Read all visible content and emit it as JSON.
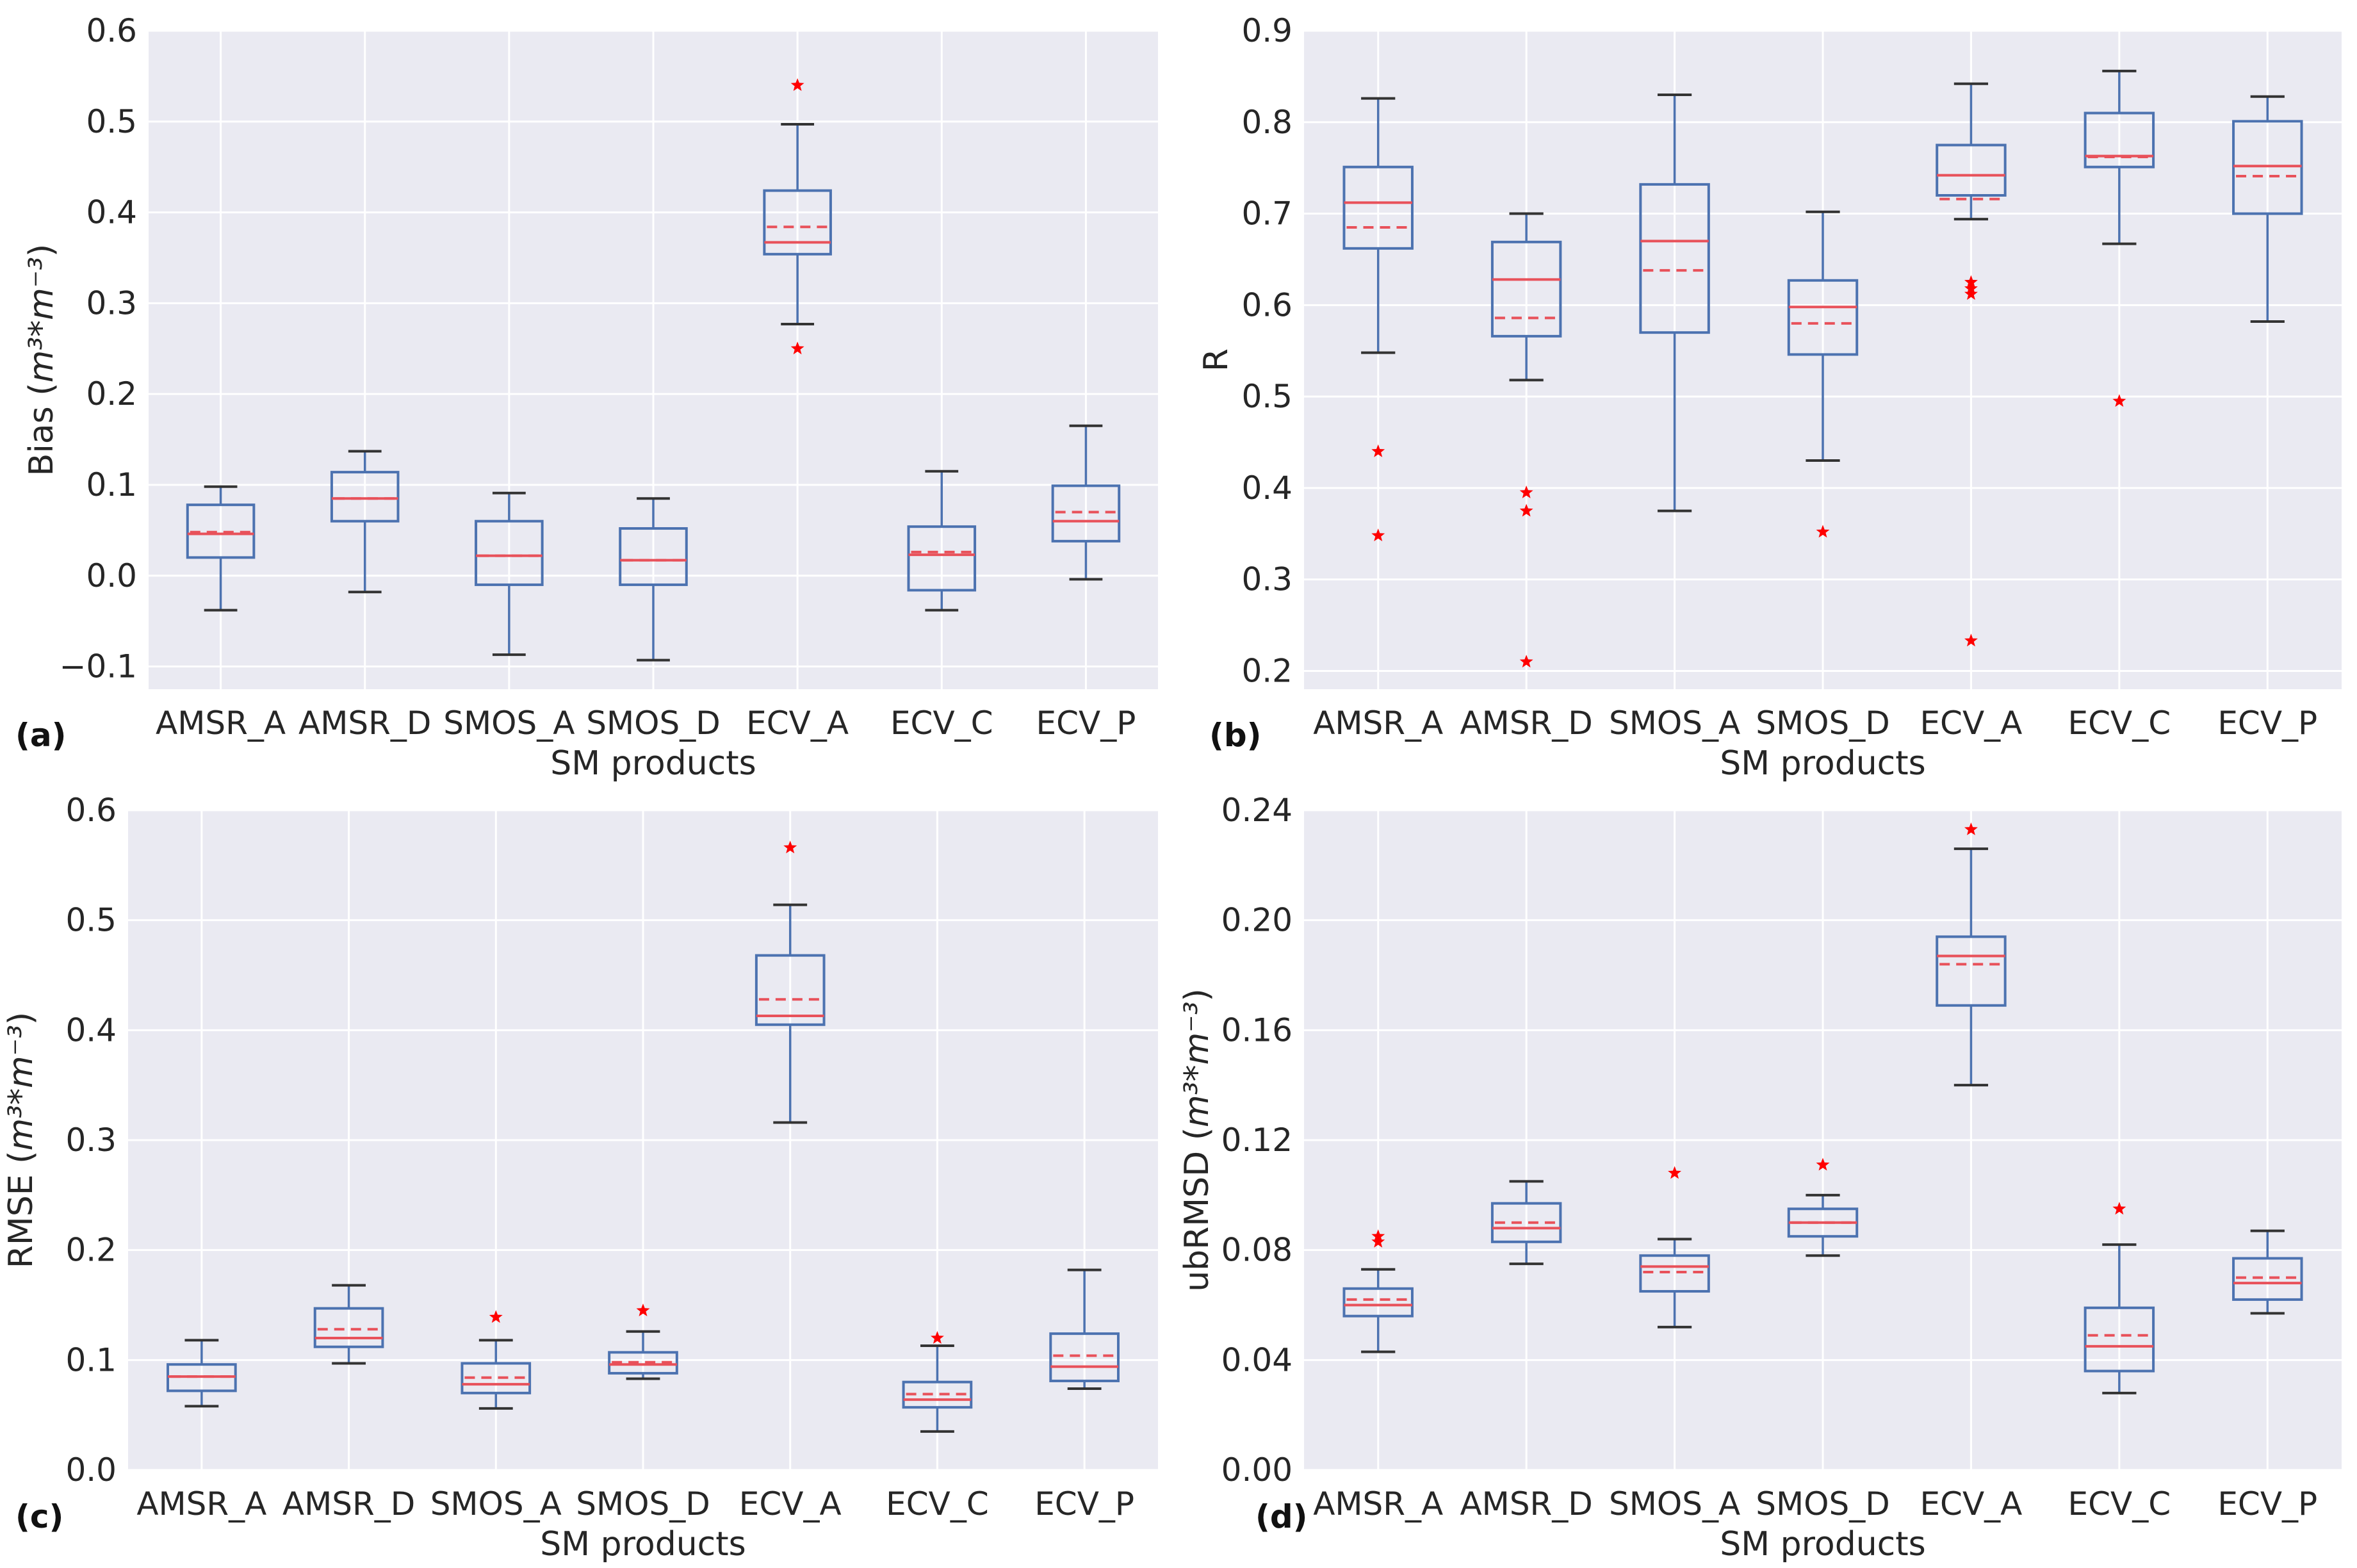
{
  "colors": {
    "background": "#eaeaf2",
    "grid": "#ffffff",
    "box": "#4c72b0",
    "whisker": "#333333",
    "median": "#e8515a",
    "mean": "#e8515a",
    "outlier": "#ff0000"
  },
  "chart_data": [
    {
      "type": "box",
      "panel_label": "(a)",
      "xlabel": "SM products",
      "ylabel_text": "Bias (",
      "ylabel_unit": "m³*m⁻³",
      "ylabel_close": ")",
      "ylim": [
        -0.125,
        0.6
      ],
      "yticks": [
        -0.1,
        0.0,
        0.1,
        0.2,
        0.3,
        0.4,
        0.5,
        0.6
      ],
      "ytick_labels": [
        "−0.1",
        "0.0",
        "0.1",
        "0.2",
        "0.3",
        "0.4",
        "0.5",
        "0.6"
      ],
      "categories": [
        "AMSR_A",
        "AMSR_D",
        "SMOS_A",
        "SMOS_D",
        "ECV_A",
        "ECV_C",
        "ECV_P"
      ],
      "boxes": [
        {
          "whislo": -0.038,
          "q1": 0.02,
          "med": 0.046,
          "mean": 0.048,
          "q3": 0.078,
          "whishi": 0.098,
          "fliers": []
        },
        {
          "whislo": -0.018,
          "q1": 0.06,
          "med": 0.085,
          "mean": 0.085,
          "q3": 0.114,
          "whishi": 0.137,
          "fliers": []
        },
        {
          "whislo": -0.087,
          "q1": -0.01,
          "med": 0.022,
          "mean": 0.022,
          "q3": 0.06,
          "whishi": 0.091,
          "fliers": []
        },
        {
          "whislo": -0.093,
          "q1": -0.01,
          "med": 0.017,
          "mean": 0.017,
          "q3": 0.052,
          "whishi": 0.085,
          "fliers": []
        },
        {
          "whislo": 0.277,
          "q1": 0.354,
          "med": 0.367,
          "mean": 0.384,
          "q3": 0.424,
          "whishi": 0.497,
          "fliers": [
            0.54,
            0.25
          ]
        },
        {
          "whislo": -0.038,
          "q1": -0.016,
          "med": 0.023,
          "mean": 0.026,
          "q3": 0.054,
          "whishi": 0.115,
          "fliers": []
        },
        {
          "whislo": -0.004,
          "q1": 0.038,
          "med": 0.06,
          "mean": 0.07,
          "q3": 0.099,
          "whishi": 0.165,
          "fliers": []
        }
      ]
    },
    {
      "type": "box",
      "panel_label": "(b)",
      "xlabel": "SM products",
      "ylabel_text": "R",
      "ylabel_unit": "",
      "ylabel_close": "",
      "ylim": [
        0.18,
        0.9
      ],
      "yticks": [
        0.2,
        0.3,
        0.4,
        0.5,
        0.6,
        0.7,
        0.8,
        0.9
      ],
      "ytick_labels": [
        "0.2",
        "0.3",
        "0.4",
        "0.5",
        "0.6",
        "0.7",
        "0.8",
        "0.9"
      ],
      "categories": [
        "AMSR_A",
        "AMSR_D",
        "SMOS_A",
        "SMOS_D",
        "ECV_A",
        "ECV_C",
        "ECV_P"
      ],
      "boxes": [
        {
          "whislo": 0.548,
          "q1": 0.662,
          "med": 0.712,
          "mean": 0.685,
          "q3": 0.751,
          "whishi": 0.826,
          "fliers": [
            0.44,
            0.348
          ]
        },
        {
          "whislo": 0.518,
          "q1": 0.566,
          "med": 0.628,
          "mean": 0.586,
          "q3": 0.669,
          "whishi": 0.7,
          "fliers": [
            0.395,
            0.375,
            0.21
          ]
        },
        {
          "whislo": 0.375,
          "q1": 0.57,
          "med": 0.67,
          "mean": 0.638,
          "q3": 0.732,
          "whishi": 0.83,
          "fliers": []
        },
        {
          "whislo": 0.43,
          "q1": 0.546,
          "med": 0.598,
          "mean": 0.58,
          "q3": 0.627,
          "whishi": 0.702,
          "fliers": [
            0.352
          ]
        },
        {
          "whislo": 0.694,
          "q1": 0.72,
          "med": 0.742,
          "mean": 0.716,
          "q3": 0.775,
          "whishi": 0.842,
          "fliers": [
            0.625,
            0.618,
            0.612,
            0.233
          ]
        },
        {
          "whislo": 0.667,
          "q1": 0.751,
          "med": 0.763,
          "mean": 0.762,
          "q3": 0.81,
          "whishi": 0.856,
          "fliers": [
            0.495
          ]
        },
        {
          "whislo": 0.582,
          "q1": 0.7,
          "med": 0.752,
          "mean": 0.741,
          "q3": 0.801,
          "whishi": 0.828,
          "fliers": []
        }
      ]
    },
    {
      "type": "box",
      "panel_label": "(c)",
      "xlabel": "SM products",
      "ylabel_text": "RMSE (",
      "ylabel_unit": "m³*m⁻³",
      "ylabel_close": ")",
      "ylim": [
        0.0,
        0.6
      ],
      "yticks": [
        0.0,
        0.1,
        0.2,
        0.3,
        0.4,
        0.5,
        0.6
      ],
      "ytick_labels": [
        "0.0",
        "0.1",
        "0.2",
        "0.3",
        "0.4",
        "0.5",
        "0.6"
      ],
      "categories": [
        "AMSR_A",
        "AMSR_D",
        "SMOS_A",
        "SMOS_D",
        "ECV_A",
        "ECV_C",
        "ECV_P"
      ],
      "boxes": [
        {
          "whislo": 0.058,
          "q1": 0.072,
          "med": 0.085,
          "mean": 0.085,
          "q3": 0.096,
          "whishi": 0.118,
          "fliers": []
        },
        {
          "whislo": 0.097,
          "q1": 0.112,
          "med": 0.12,
          "mean": 0.128,
          "q3": 0.147,
          "whishi": 0.168,
          "fliers": []
        },
        {
          "whislo": 0.056,
          "q1": 0.07,
          "med": 0.078,
          "mean": 0.084,
          "q3": 0.097,
          "whishi": 0.118,
          "fliers": [
            0.139
          ]
        },
        {
          "whislo": 0.083,
          "q1": 0.088,
          "med": 0.096,
          "mean": 0.098,
          "q3": 0.107,
          "whishi": 0.126,
          "fliers": [
            0.145
          ]
        },
        {
          "whislo": 0.316,
          "q1": 0.405,
          "med": 0.413,
          "mean": 0.428,
          "q3": 0.468,
          "whishi": 0.514,
          "fliers": [
            0.566
          ]
        },
        {
          "whislo": 0.035,
          "q1": 0.057,
          "med": 0.064,
          "mean": 0.069,
          "q3": 0.08,
          "whishi": 0.113,
          "fliers": [
            0.12
          ]
        },
        {
          "whislo": 0.074,
          "q1": 0.081,
          "med": 0.094,
          "mean": 0.104,
          "q3": 0.124,
          "whishi": 0.182,
          "fliers": []
        }
      ]
    },
    {
      "type": "box",
      "panel_label": "(d)",
      "xlabel": "SM products",
      "ylabel_text": "ubRMSD (",
      "ylabel_unit": "m³*m⁻³",
      "ylabel_close": ")",
      "ylim": [
        0.0,
        0.24
      ],
      "yticks": [
        0.0,
        0.04,
        0.08,
        0.12,
        0.16,
        0.2,
        0.24
      ],
      "ytick_labels": [
        "0.00",
        "0.04",
        "0.08",
        "0.12",
        "0.16",
        "0.20",
        "0.24"
      ],
      "categories": [
        "AMSR_A",
        "AMSR_D",
        "SMOS_A",
        "SMOS_D",
        "ECV_A",
        "ECV_C",
        "ECV_P"
      ],
      "boxes": [
        {
          "whislo": 0.043,
          "q1": 0.056,
          "med": 0.06,
          "mean": 0.062,
          "q3": 0.066,
          "whishi": 0.073,
          "fliers": [
            0.085,
            0.083
          ]
        },
        {
          "whislo": 0.075,
          "q1": 0.083,
          "med": 0.088,
          "mean": 0.09,
          "q3": 0.097,
          "whishi": 0.105,
          "fliers": []
        },
        {
          "whislo": 0.052,
          "q1": 0.065,
          "med": 0.074,
          "mean": 0.072,
          "q3": 0.078,
          "whishi": 0.084,
          "fliers": [
            0.108
          ]
        },
        {
          "whislo": 0.078,
          "q1": 0.085,
          "med": 0.09,
          "mean": 0.09,
          "q3": 0.095,
          "whishi": 0.1,
          "fliers": [
            0.111
          ]
        },
        {
          "whislo": 0.14,
          "q1": 0.169,
          "med": 0.187,
          "mean": 0.184,
          "q3": 0.194,
          "whishi": 0.226,
          "fliers": [
            0.233
          ]
        },
        {
          "whislo": 0.028,
          "q1": 0.036,
          "med": 0.045,
          "mean": 0.049,
          "q3": 0.059,
          "whishi": 0.082,
          "fliers": [
            0.095
          ]
        },
        {
          "whislo": 0.057,
          "q1": 0.062,
          "med": 0.068,
          "mean": 0.07,
          "q3": 0.077,
          "whishi": 0.087,
          "fliers": []
        }
      ]
    }
  ]
}
